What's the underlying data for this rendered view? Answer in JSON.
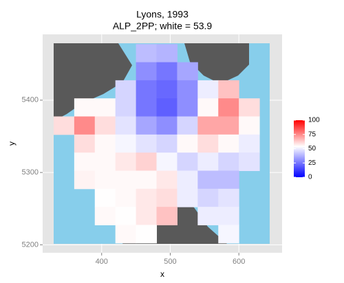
{
  "chart_data": {
    "type": "heatmap",
    "title": "Lyons, 1993",
    "subtitle": "ALP_2PP; white = 53.9",
    "x_label": "x",
    "y_label": "y",
    "xlim": [
      314,
      663
    ],
    "ylim": [
      5189,
      5491
    ],
    "xticks": [
      400,
      500,
      600
    ],
    "yticks": [
      5200,
      5300,
      5400
    ],
    "grid": true,
    "x": [
      345,
      375,
      405,
      435,
      465,
      495,
      525,
      555,
      585,
      615,
      645
    ],
    "y": [
      5465,
      5440,
      5415,
      5390,
      5365,
      5340,
      5315,
      5290,
      5265,
      5240,
      5215
    ],
    "values": [
      [
        null,
        null,
        null,
        null,
        40,
        38,
        null,
        null,
        null,
        null,
        null
      ],
      [
        null,
        null,
        null,
        null,
        30,
        25,
        35,
        null,
        null,
        null,
        null
      ],
      [
        null,
        null,
        null,
        45,
        25,
        22,
        30,
        50,
        65,
        null,
        null
      ],
      [
        null,
        55,
        55,
        45,
        25,
        20,
        30,
        55,
        75,
        60,
        null
      ],
      [
        60,
        75,
        60,
        48,
        35,
        30,
        45,
        70,
        70,
        55,
        null
      ],
      [
        null,
        60,
        55,
        52,
        48,
        45,
        55,
        60,
        55,
        50,
        null
      ],
      [
        null,
        55,
        55,
        58,
        62,
        52,
        45,
        50,
        45,
        48,
        null
      ],
      [
        null,
        56,
        55,
        55,
        55,
        58,
        50,
        40,
        40,
        null,
        null
      ],
      [
        null,
        null,
        54,
        55,
        58,
        60,
        50,
        45,
        48,
        null,
        null
      ],
      [
        null,
        null,
        55,
        54,
        58,
        65,
        null,
        50,
        50,
        null,
        null
      ],
      [
        null,
        null,
        null,
        55,
        54,
        null,
        null,
        null,
        52,
        null,
        null
      ]
    ],
    "white": 53.9,
    "low_color": "#0000ff",
    "mid_color": "#ffffff",
    "high_color": "#ff0000",
    "legend_lim": [
      0,
      100
    ],
    "legend_ticks": [
      0,
      25,
      50,
      75,
      100
    ],
    "legend_position": "right"
  }
}
